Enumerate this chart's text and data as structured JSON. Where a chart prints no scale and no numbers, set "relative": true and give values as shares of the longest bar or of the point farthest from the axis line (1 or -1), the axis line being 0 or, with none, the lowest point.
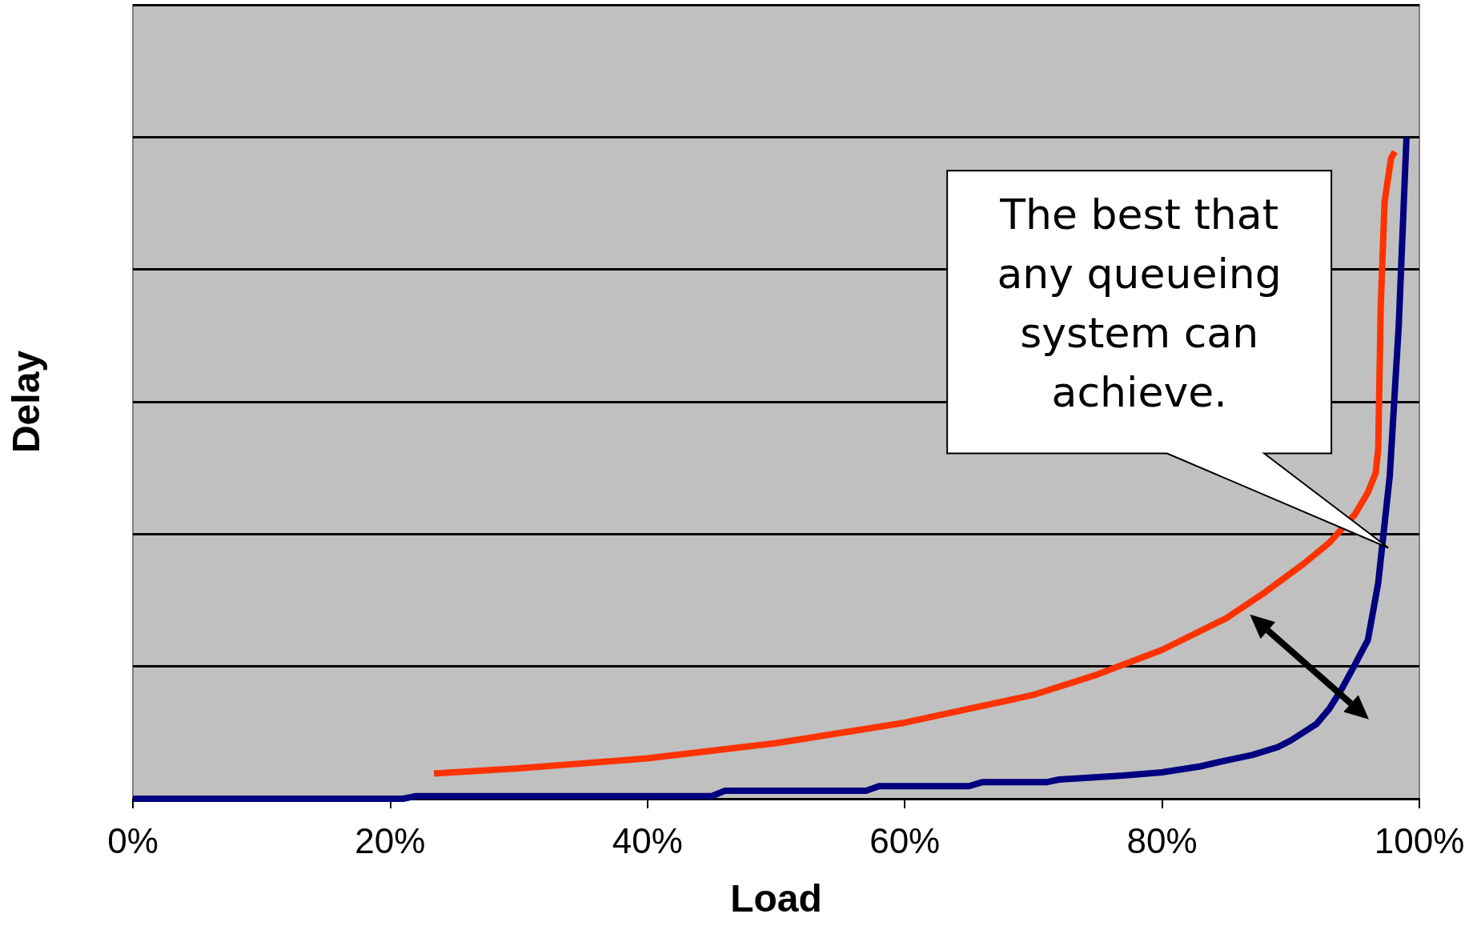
{
  "chart_data": {
    "type": "line",
    "relative": true,
    "xlabel": "Load",
    "ylabel": "Delay",
    "xlim": [
      0,
      100
    ],
    "xticks": [
      {
        "value": 0,
        "label": "0%"
      },
      {
        "value": 20,
        "label": "20%"
      },
      {
        "value": 40,
        "label": "40%"
      },
      {
        "value": 60,
        "label": "60%"
      },
      {
        "value": 80,
        "label": "80%"
      },
      {
        "value": 100,
        "label": "100%"
      }
    ],
    "grid": "y",
    "marker": "none",
    "line_style": "solid",
    "annotations": [
      "The best that any queueing system can achieve."
    ],
    "series": [
      {
        "color": "#000080",
        "x": [
          0,
          21,
          22,
          45,
          46,
          57,
          58,
          65,
          66,
          71,
          72,
          77,
          80,
          83,
          85,
          87,
          89,
          90,
          92,
          93,
          94,
          95,
          96,
          96.8,
          97.7,
          98.4,
          99
        ],
        "values": [
          0,
          0,
          0.004,
          0.004,
          0.012,
          0.012,
          0.019,
          0.019,
          0.025,
          0.025,
          0.029,
          0.035,
          0.04,
          0.049,
          0.058,
          0.066,
          0.078,
          0.088,
          0.113,
          0.136,
          0.167,
          0.203,
          0.24,
          0.326,
          0.488,
          0.716,
          1
        ]
      },
      {
        "color": "#ff3300",
        "x": [
          23.4,
          30,
          40,
          50,
          60,
          70,
          75,
          80,
          85,
          88,
          91,
          93,
          95,
          96,
          96.6,
          96.8,
          97,
          97.3,
          97.8,
          98.1
        ],
        "values": [
          0.038,
          0.046,
          0.061,
          0.084,
          0.115,
          0.157,
          0.188,
          0.225,
          0.273,
          0.312,
          0.355,
          0.387,
          0.43,
          0.463,
          0.492,
          0.528,
          0.745,
          0.903,
          0.968,
          0.978
        ]
      }
    ]
  }
}
